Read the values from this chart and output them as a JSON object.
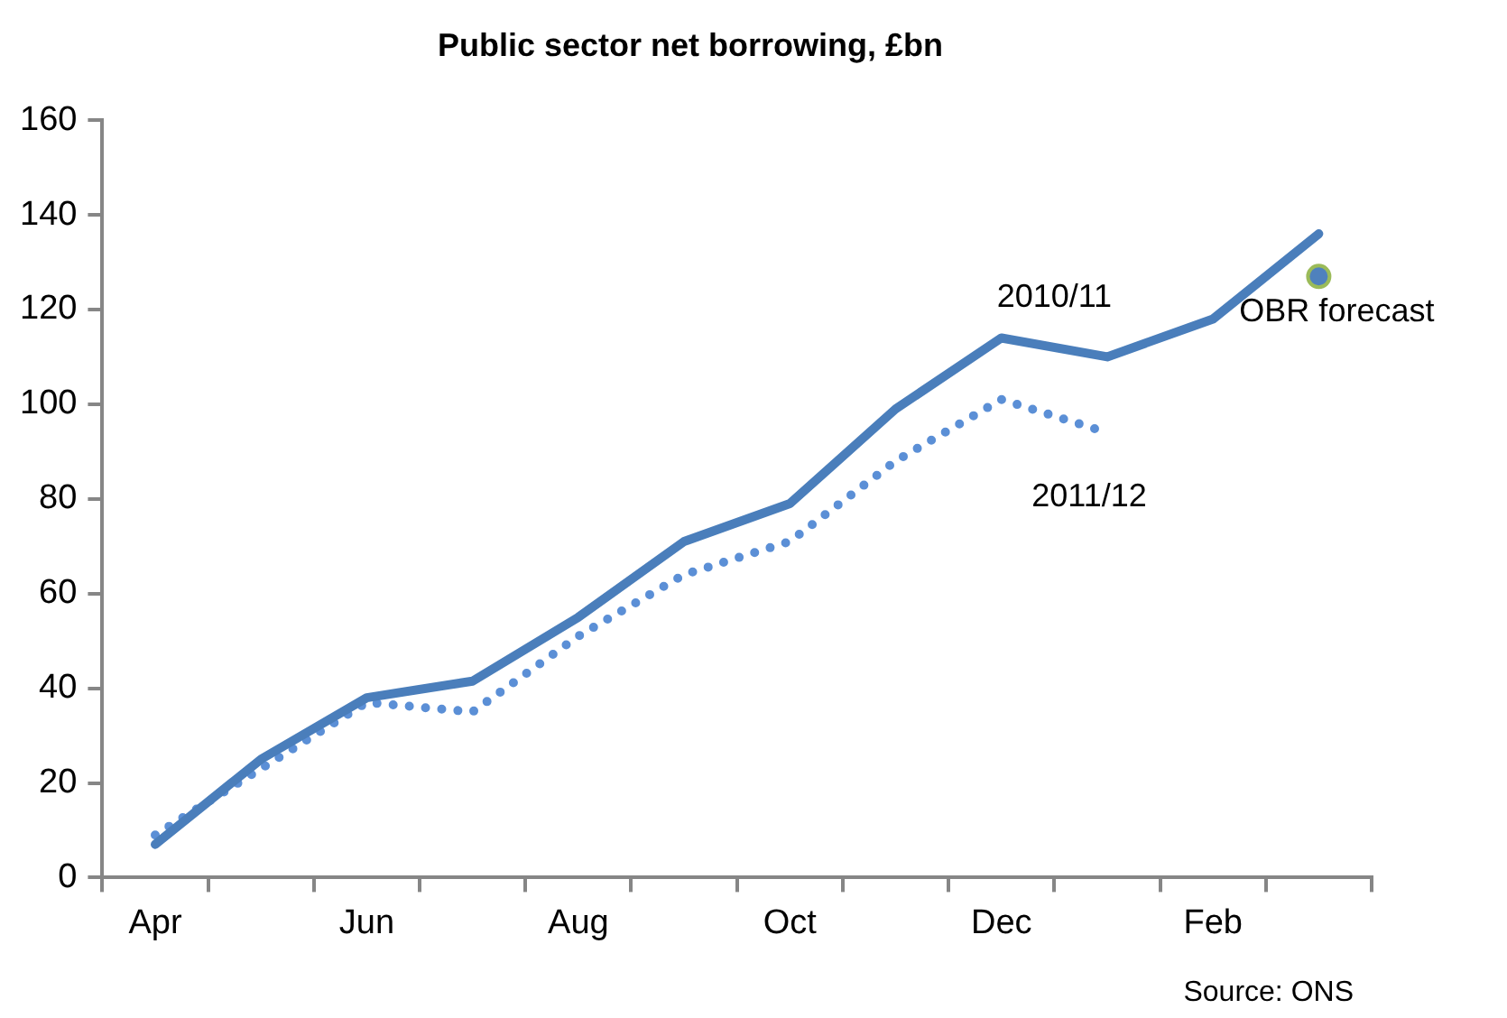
{
  "chart_data": {
    "type": "line",
    "title": "Public sector net borrowing, £bn",
    "categories": [
      "Apr",
      null,
      "Jun",
      null,
      "Aug",
      null,
      "Oct",
      null,
      "Dec",
      null,
      "Feb",
      null
    ],
    "series": [
      {
        "name": "2010/11",
        "color": "#4a7ebb",
        "line_style": "solid",
        "marker": "none",
        "values": [
          7,
          25,
          38,
          41.5,
          55,
          71,
          79,
          99,
          114,
          110,
          118,
          136
        ]
      },
      {
        "name": "2011/12",
        "color": "#5b8fd6",
        "line_style": "dotted",
        "marker": "none",
        "values": [
          9,
          23,
          37,
          35,
          51,
          64,
          71,
          88,
          101,
          94,
          null,
          null
        ]
      },
      {
        "name": "OBR forecast",
        "type": "scatter",
        "marker": "circle",
        "color": "#4f81bd",
        "values": [
          null,
          null,
          null,
          null,
          null,
          null,
          null,
          null,
          null,
          null,
          null,
          127
        ]
      }
    ],
    "ylim": [
      0,
      160
    ],
    "yticks": [
      0,
      20,
      40,
      60,
      80,
      100,
      120,
      140,
      160
    ],
    "grid": false,
    "legend": false,
    "annotations": [
      "Source: ONS"
    ]
  }
}
